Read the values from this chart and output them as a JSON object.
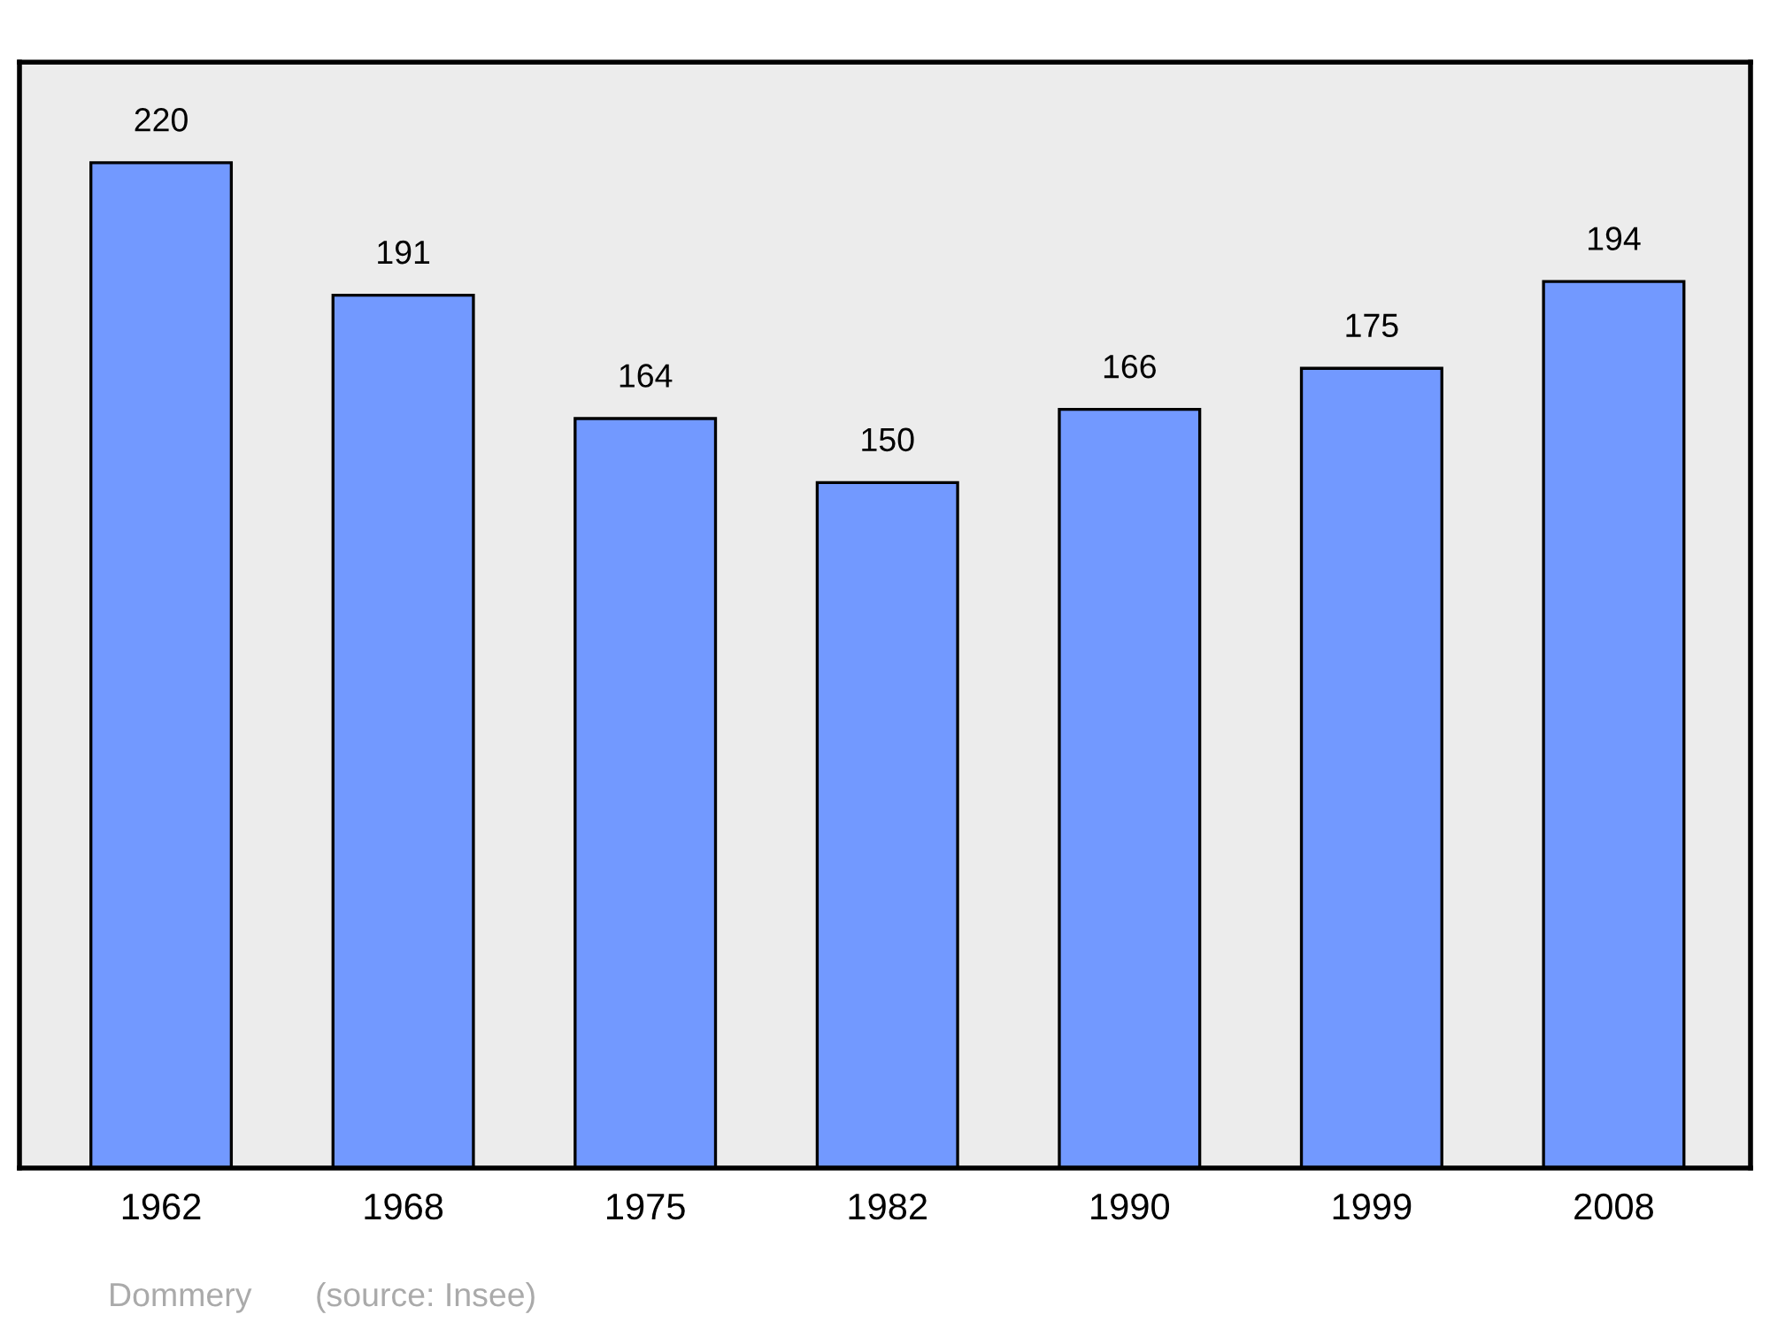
{
  "chart_data": {
    "type": "bar",
    "categories": [
      "1962",
      "1968",
      "1975",
      "1982",
      "1990",
      "1999",
      "2008"
    ],
    "values": [
      220,
      191,
      164,
      150,
      166,
      175,
      194
    ],
    "color": "#7299ff",
    "data_labels": true,
    "grid": false,
    "legend": false,
    "annotations": [
      "Dommery",
      "(source: Insee)"
    ]
  }
}
